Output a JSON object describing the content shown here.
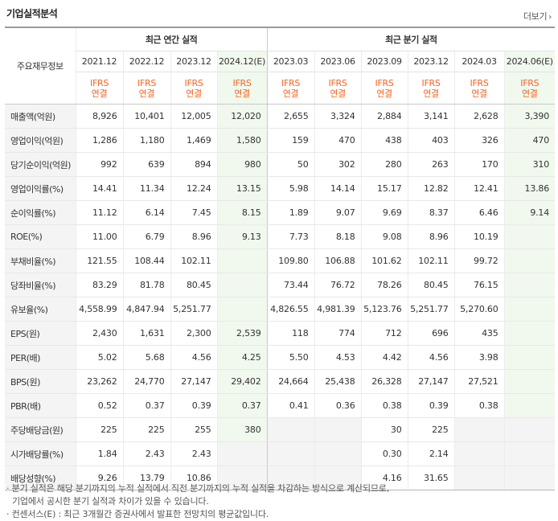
{
  "title": "기업실적분석",
  "more": "더보기",
  "more_icon": "chevron-right-icon",
  "headers": {
    "row_label": "주요재무정보",
    "annual_group": "최근 연간 실적",
    "quarter_group": "최근 분기 실적",
    "periods": [
      "2021.12",
      "2022.12",
      "2023.12",
      "2024.12(E)",
      "2023.03",
      "2023.06",
      "2023.09",
      "2023.12",
      "2024.03",
      "2024.06(E)"
    ],
    "ifrs": "IFRS",
    "basis": "연결"
  },
  "rows": [
    {
      "label": "매출액(억원)",
      "values": [
        "8,926",
        "10,401",
        "12,005",
        "12,020",
        "2,655",
        "3,324",
        "2,884",
        "3,141",
        "2,628",
        "3,390"
      ]
    },
    {
      "label": "영업이익(억원)",
      "values": [
        "1,286",
        "1,180",
        "1,469",
        "1,580",
        "159",
        "470",
        "438",
        "403",
        "326",
        "470"
      ]
    },
    {
      "label": "당기순이익(억원)",
      "values": [
        "992",
        "639",
        "894",
        "980",
        "50",
        "302",
        "280",
        "263",
        "170",
        "310"
      ]
    },
    {
      "label": "영업이익률(%)",
      "values": [
        "14.41",
        "11.34",
        "12.24",
        "13.15",
        "5.98",
        "14.14",
        "15.17",
        "12.82",
        "12.41",
        "13.86"
      ]
    },
    {
      "label": "순이익률(%)",
      "values": [
        "11.12",
        "6.14",
        "7.45",
        "8.15",
        "1.89",
        "9.07",
        "9.69",
        "8.37",
        "6.46",
        "9.14"
      ]
    },
    {
      "label": "ROE(%)",
      "values": [
        "11.00",
        "6.79",
        "8.96",
        "9.13",
        "7.73",
        "8.18",
        "9.08",
        "8.96",
        "10.19",
        ""
      ]
    },
    {
      "label": "부채비율(%)",
      "values": [
        "121.55",
        "108.44",
        "102.11",
        "",
        "109.80",
        "106.88",
        "101.62",
        "102.11",
        "99.72",
        ""
      ]
    },
    {
      "label": "당좌비율(%)",
      "values": [
        "83.29",
        "81.78",
        "80.45",
        "",
        "73.44",
        "76.72",
        "78.26",
        "80.45",
        "76.15",
        ""
      ]
    },
    {
      "label": "유보율(%)",
      "values": [
        "4,558.99",
        "4,847.94",
        "5,251.77",
        "",
        "4,826.55",
        "4,981.39",
        "5,123.76",
        "5,251.77",
        "5,270.60",
        ""
      ]
    },
    {
      "label": "EPS(원)",
      "values": [
        "2,430",
        "1,631",
        "2,300",
        "2,539",
        "118",
        "774",
        "712",
        "696",
        "435",
        ""
      ]
    },
    {
      "label": "PER(배)",
      "values": [
        "5.02",
        "5.68",
        "4.56",
        "4.25",
        "5.50",
        "4.53",
        "4.42",
        "4.56",
        "3.98",
        ""
      ]
    },
    {
      "label": "BPS(원)",
      "values": [
        "23,262",
        "24,770",
        "27,147",
        "29,402",
        "24,664",
        "25,438",
        "26,328",
        "27,147",
        "27,521",
        ""
      ]
    },
    {
      "label": "PBR(배)",
      "values": [
        "0.52",
        "0.37",
        "0.39",
        "0.37",
        "0.41",
        "0.36",
        "0.38",
        "0.39",
        "0.38",
        ""
      ]
    },
    {
      "label": "주당배당금(원)",
      "values": [
        "225",
        "225",
        "255",
        "380",
        "",
        "",
        "30",
        "225",
        "",
        ""
      ]
    },
    {
      "label": "시가배당률(%)",
      "values": [
        "1.84",
        "2.43",
        "2.43",
        "",
        "",
        "",
        "0.30",
        "2.14",
        "",
        ""
      ]
    },
    {
      "label": "배당성향(%)",
      "values": [
        "9.26",
        "13.79",
        "10.86",
        "",
        "",
        "",
        "4.16",
        "31.65",
        "",
        ""
      ]
    }
  ],
  "notes": [
    "· 분기 실적은 해당 분기까지의 누적 실적에서 직전 분기까지의 누적 실적을 차감하는 방식으로 계산되므로,",
    "기업에서 공시한 분기 실적과 차이가 있을 수 있습니다.",
    "· 컨센서스(E) : 최근 3개월간 증권사에서 발표한 전망치의 평균값입니다."
  ]
}
